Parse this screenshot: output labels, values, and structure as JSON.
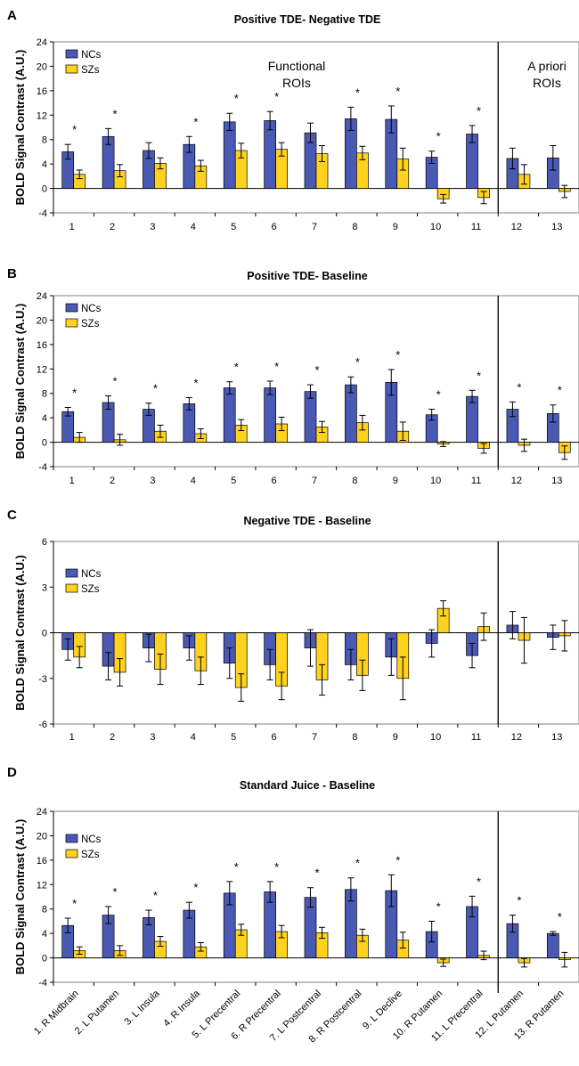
{
  "colors": {
    "ncs": "#4a5ab4",
    "szs": "#ffd21f",
    "axis": "#000000",
    "frame": "#808080"
  },
  "legend": {
    "ncs": "NCs",
    "szs": "SZs"
  },
  "ylabel": "BOLD Signal Contrast (A.U.)",
  "chart_data": [
    {
      "panel": "A",
      "type": "bar",
      "title": "Positive TDE- Negative TDE",
      "ylabel": "BOLD Signal Contrast (A.U.)",
      "ylim": [
        -4,
        24
      ],
      "yticks": [
        "24",
        "20",
        "16",
        "12",
        "8",
        "4",
        "0",
        "-4"
      ],
      "categories": [
        "1",
        "2",
        "3",
        "4",
        "5",
        "6",
        "7",
        "8",
        "9",
        "10",
        "11",
        "12",
        "13"
      ],
      "region_labels": [
        "Functional",
        "ROIs",
        "A priori",
        "ROIs"
      ],
      "series": [
        {
          "name": "NCs",
          "values": [
            6.0,
            8.5,
            6.2,
            7.2,
            10.9,
            11.1,
            9.1,
            11.4,
            11.3,
            5.1,
            8.9,
            4.9,
            5.0
          ],
          "errors": [
            1.2,
            1.3,
            1.3,
            1.3,
            1.4,
            1.5,
            1.6,
            1.9,
            2.2,
            1.0,
            1.4,
            1.7,
            2.0
          ]
        },
        {
          "name": "SZs",
          "values": [
            2.3,
            2.9,
            4.1,
            3.7,
            6.2,
            6.4,
            5.7,
            5.8,
            4.8,
            -1.7,
            -1.5,
            2.3,
            -0.5
          ],
          "errors": [
            0.7,
            1.0,
            0.9,
            0.9,
            1.2,
            1.1,
            1.3,
            1.1,
            1.8,
            0.7,
            1.0,
            1.6,
            1.0
          ]
        }
      ],
      "significance": [
        "*",
        "*",
        "",
        "*",
        "*",
        "*",
        "",
        "*",
        "*",
        "*",
        "*",
        "",
        ""
      ]
    },
    {
      "panel": "B",
      "type": "bar",
      "title": "Positive TDE- Baseline",
      "ylabel": "BOLD Signal Contrast (A.U.)",
      "ylim": [
        -4,
        24
      ],
      "yticks": [
        "24",
        "20",
        "16",
        "12",
        "8",
        "4",
        "0",
        "-4"
      ],
      "categories": [
        "1",
        "2",
        "3",
        "4",
        "5",
        "6",
        "7",
        "8",
        "9",
        "10",
        "11",
        "12",
        "13"
      ],
      "series": [
        {
          "name": "NCs",
          "values": [
            5.0,
            6.5,
            5.4,
            6.3,
            8.9,
            8.9,
            8.3,
            9.4,
            9.8,
            4.5,
            7.5,
            5.4,
            4.7
          ],
          "errors": [
            0.7,
            1.1,
            1.0,
            1.0,
            1.0,
            1.1,
            1.1,
            1.3,
            2.1,
            0.9,
            1.0,
            1.2,
            1.4
          ]
        },
        {
          "name": "SZs",
          "values": [
            0.8,
            0.4,
            1.8,
            1.4,
            2.8,
            3.0,
            2.5,
            3.2,
            1.8,
            -0.3,
            -1.0,
            -0.5,
            -1.7
          ],
          "errors": [
            0.8,
            0.9,
            1.0,
            0.8,
            0.9,
            1.1,
            0.9,
            1.2,
            1.5,
            0.4,
            0.8,
            1.0,
            1.1
          ]
        }
      ],
      "significance": [
        "*",
        "*",
        "*",
        "*",
        "*",
        "*",
        "*",
        "*",
        "*",
        "*",
        "*",
        "*",
        "*"
      ]
    },
    {
      "panel": "C",
      "type": "bar",
      "title": "Negative TDE - Baseline",
      "ylabel": "BOLD Signal Contrast (A.U.)",
      "ylim": [
        -6,
        6
      ],
      "yticks": [
        "6",
        "3",
        "0",
        "-3",
        "-6"
      ],
      "categories": [
        "1",
        "2",
        "3",
        "4",
        "5",
        "6",
        "7",
        "8",
        "9",
        "10",
        "11",
        "12",
        "13"
      ],
      "series": [
        {
          "name": "NCs",
          "values": [
            -1.1,
            -2.2,
            -1.0,
            -1.0,
            -2.0,
            -2.1,
            -1.0,
            -2.1,
            -1.6,
            -0.7,
            -1.5,
            0.5,
            -0.3
          ],
          "errors": [
            0.7,
            0.9,
            0.9,
            0.8,
            1.0,
            1.0,
            1.2,
            1.0,
            1.2,
            0.9,
            0.8,
            0.9,
            0.8
          ]
        },
        {
          "name": "SZs",
          "values": [
            -1.6,
            -2.6,
            -2.4,
            -2.5,
            -3.6,
            -3.5,
            -3.1,
            -2.8,
            -3.0,
            1.6,
            0.4,
            -0.5,
            -0.2
          ],
          "errors": [
            0.7,
            0.9,
            1.0,
            0.9,
            0.9,
            0.9,
            1.0,
            1.0,
            1.4,
            0.5,
            0.9,
            1.5,
            1.0
          ]
        }
      ],
      "significance": [
        "",
        "",
        "",
        "",
        "",
        "",
        "",
        "",
        "",
        "",
        "",
        "",
        ""
      ]
    },
    {
      "panel": "D",
      "type": "bar",
      "title": "Standard Juice - Baseline",
      "ylabel": "BOLD Signal Contrast (A.U.)",
      "ylim": [
        -4,
        24
      ],
      "yticks": [
        "24",
        "20",
        "16",
        "12",
        "8",
        "4",
        "0",
        "-4"
      ],
      "categories": [
        "1. R Midbrain",
        "2. L Putamen",
        "3. L Insula",
        "4. R Insula",
        "5. L Precentral",
        "6. R Precentral",
        "7. L Postcentral",
        "8. R Postcentral",
        "9. L Declive",
        "10. R Putamen",
        "11. L Precentral",
        "12. L Putamen",
        "13. R Putamen"
      ],
      "series": [
        {
          "name": "NCs",
          "values": [
            5.3,
            7.0,
            6.6,
            7.8,
            10.6,
            10.8,
            9.9,
            11.2,
            11.0,
            4.3,
            8.4,
            5.6,
            4.0
          ],
          "errors": [
            1.2,
            1.4,
            1.2,
            1.3,
            1.9,
            1.7,
            1.6,
            1.9,
            2.6,
            1.7,
            1.7,
            1.4,
            0.3
          ]
        },
        {
          "name": "SZs",
          "values": [
            1.2,
            1.2,
            2.7,
            1.8,
            4.6,
            4.3,
            4.1,
            3.7,
            2.9,
            -0.8,
            0.4,
            -0.8,
            -0.3
          ],
          "errors": [
            0.6,
            0.8,
            0.8,
            0.7,
            0.9,
            1.0,
            0.9,
            1.0,
            1.3,
            0.6,
            0.7,
            0.7,
            1.2
          ]
        }
      ],
      "significance": [
        "*",
        "*",
        "*",
        "*",
        "*",
        "*",
        "*",
        "*",
        "*",
        "*",
        "*",
        "*",
        "*"
      ]
    }
  ]
}
